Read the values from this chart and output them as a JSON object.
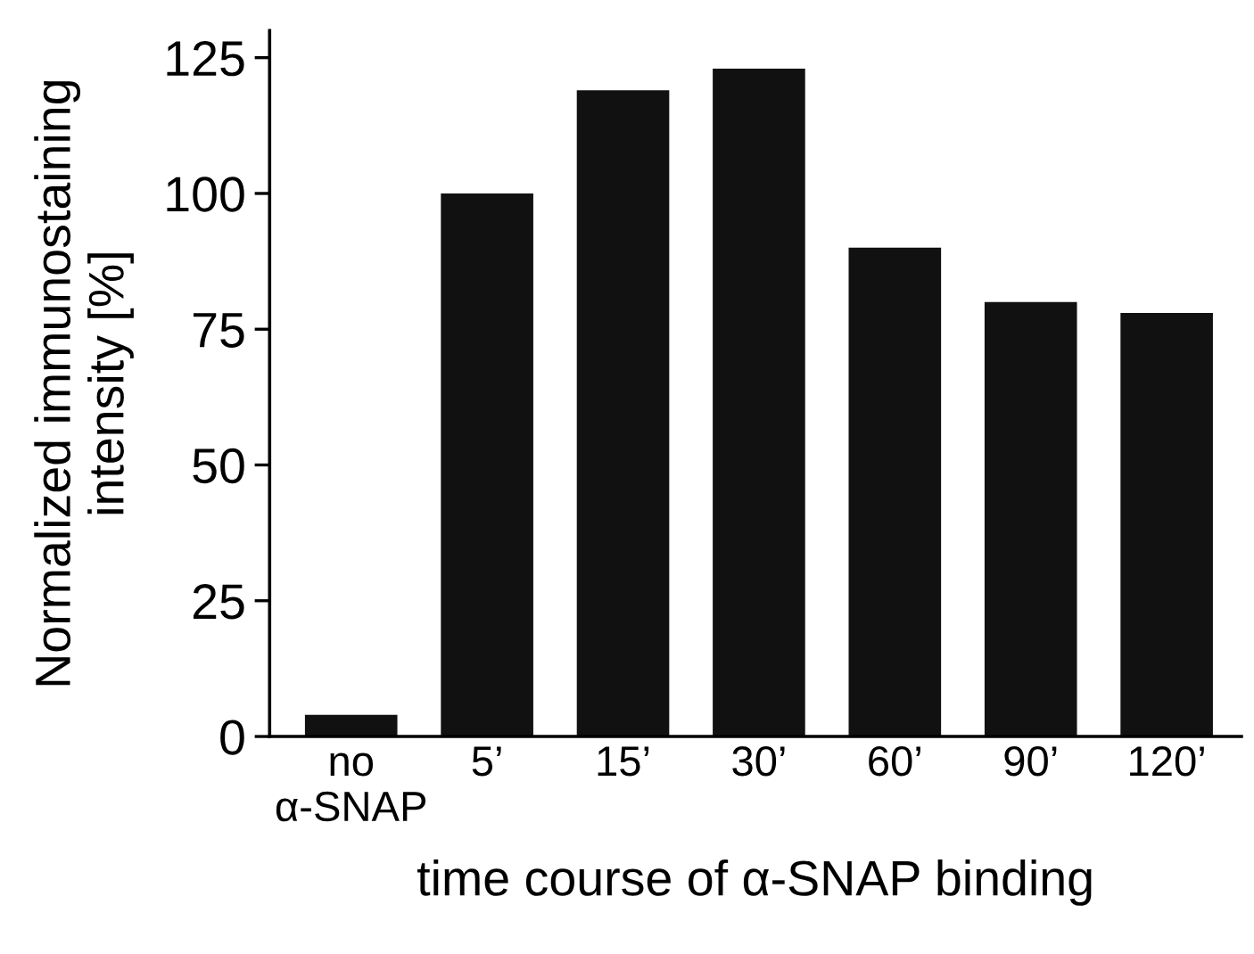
{
  "chart_data": {
    "type": "bar",
    "xlabel": "time course of α-SNAP binding",
    "ylabel": "Normalized immunostaining\nintensity [%]",
    "categories": [
      "no\nα-SNAP",
      "5’",
      "15’",
      "30’",
      "60’",
      "90’",
      "120’"
    ],
    "values": [
      4,
      100,
      119,
      123,
      90,
      80,
      78
    ],
    "color": "#111111",
    "ylim": [
      0,
      130
    ],
    "yticks": [
      0,
      25,
      50,
      75,
      100,
      125
    ],
    "grid": false,
    "legend": false
  }
}
